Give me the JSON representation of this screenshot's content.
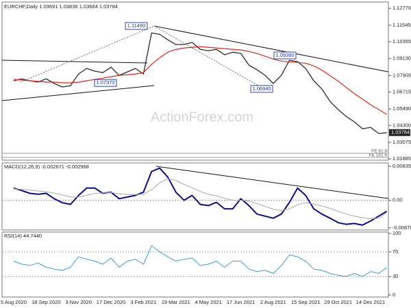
{
  "chart_data": [
    {
      "type": "line",
      "title": "EURCHF,Daily  1.03691 1.03836 1.03664 1.03784",
      "watermark": "ActionForex.com",
      "ylim": [
        1.0179,
        1.1322
      ],
      "yticks": [
        {
          "value": 1.1277,
          "label": "1.12770"
        },
        {
          "value": 1.11545,
          "label": "1.11545"
        },
        {
          "value": 1.10355,
          "label": "1.10355"
        },
        {
          "value": 1.0913,
          "label": "1.09130"
        },
        {
          "value": 1.07905,
          "label": "1.07905"
        },
        {
          "value": 1.06715,
          "label": "1.06715"
        },
        {
          "value": 1.0549,
          "label": "1.05490"
        },
        {
          "value": 1.043,
          "label": "1.04300"
        },
        {
          "value": 1.03075,
          "label": "1.03075"
        },
        {
          "value": 1.01885,
          "label": "1.01885"
        }
      ],
      "grid": false,
      "last_price": {
        "value": 1.03784,
        "label": "1.03784"
      },
      "annotations": [
        {
          "value": 1.1149,
          "label": "1.11490"
        },
        {
          "value": 1.0737,
          "label": "1.07370"
        },
        {
          "value": 1.0936,
          "label": "1.09360"
        },
        {
          "value": 1.0694,
          "label": "1.06940"
        }
      ],
      "fe_labels": [
        "FE 61.8",
        "FE 161.8"
      ],
      "series": [
        {
          "color": "#2b2b2b",
          "width": 1.3,
          "values": [
            1.0753,
            1.0767,
            1.0753,
            1.0743,
            1.0767,
            1.0733,
            1.0708,
            1.0718,
            1.0802,
            1.0842,
            1.0822,
            1.0812,
            1.0851,
            1.0792,
            1.0817,
            1.0842,
            1.0802,
            1.1099,
            1.1089,
            1.1049,
            1.1015,
            1.1015,
            1.103,
            1.098,
            1.097,
            1.098,
            1.0941,
            1.096,
            1.0951,
            1.0866,
            1.0832,
            1.0792,
            1.0733,
            1.0792,
            1.0901,
            1.0891,
            1.0842,
            1.0753,
            1.0693,
            1.0604,
            1.0545,
            1.0495,
            1.0456,
            1.0406,
            1.0416,
            1.0372,
            1.0378
          ]
        },
        {
          "color": "#e0251b",
          "width": 1.2,
          "values": [
            1.0763,
            1.0758,
            1.0753,
            1.0748,
            1.0743,
            1.0743,
            1.0738,
            1.0738,
            1.0743,
            1.0753,
            1.0763,
            1.0772,
            1.0782,
            1.0792,
            1.0797,
            1.0802,
            1.0812,
            1.0871,
            1.092,
            1.096,
            1.098,
            1.099,
            1.0995,
            1.1,
            1.0995,
            1.099,
            1.0985,
            1.098,
            1.0975,
            1.0965,
            1.095,
            1.093,
            1.091,
            1.0895,
            1.089,
            1.0885,
            1.088,
            1.086,
            1.083,
            1.079,
            1.075,
            1.0705,
            1.066,
            1.062,
            1.058,
            1.0545,
            1.051
          ]
        }
      ]
    },
    {
      "type": "line",
      "title": "MACD(12,26,9) -0.002671 -0.002968",
      "ylim": [
        -0.0073,
        0.0092
      ],
      "yticks": [
        0.008353,
        {
          "value": 0,
          "label": "0.00"
        },
        -0.006788
      ],
      "grid": true,
      "series": [
        {
          "color": "#0a0a8c",
          "width": 2,
          "values": [
            0.003,
            0.0024,
            0.0017,
            0.0015,
            0.0017,
            0.0004,
            -0.0006,
            -0.001,
            0.0012,
            0.003,
            0.003,
            0.0017,
            0.002,
            0.0004,
            0.0008,
            0.0012,
            0.002,
            0.0071,
            0.0079,
            0.0057,
            0.002,
            0.0,
            0.0012,
            -0.001,
            -0.0013,
            -0.0005,
            -0.0021,
            -0.0021,
            0.0004,
            -0.0013,
            -0.0034,
            -0.0039,
            -0.0044,
            -0.0034,
            -0.0005,
            0.003,
            0.0012,
            -0.0021,
            -0.0034,
            -0.0044,
            -0.0055,
            -0.0059,
            -0.0057,
            -0.0061,
            -0.0051,
            -0.0039,
            -0.0027
          ]
        },
        {
          "color": "#a8a8a8",
          "width": 1,
          "values": [
            0.0028,
            0.0027,
            0.0025,
            0.0023,
            0.0021,
            0.0018,
            0.0013,
            0.0008,
            0.0008,
            0.0012,
            0.0017,
            0.0018,
            0.0019,
            0.0016,
            0.0014,
            0.0014,
            0.0015,
            0.0026,
            0.0043,
            0.0053,
            0.0049,
            0.0039,
            0.0031,
            0.0022,
            0.0015,
            0.0011,
            0.0005,
            0.0,
            0.0,
            -0.0002,
            -0.0008,
            -0.0015,
            -0.0022,
            -0.0025,
            -0.0021,
            -0.0011,
            -0.0006,
            -0.0009,
            -0.0014,
            -0.002,
            -0.0027,
            -0.0034,
            -0.0039,
            -0.0043,
            -0.0045,
            -0.0044,
            -0.003
          ]
        }
      ]
    },
    {
      "type": "line",
      "title": "RSI(14) 44.7440",
      "ylim": [
        0,
        100
      ],
      "yticks": [
        100,
        70,
        30,
        0
      ],
      "grid": true,
      "categories": [
        "5 Aug 2020",
        null,
        null,
        null,
        "18 Sep 2020",
        null,
        null,
        null,
        "3 Nov 2020",
        null,
        null,
        null,
        "17 Dec 2020",
        null,
        null,
        null,
        "3 Feb 2021",
        null,
        null,
        null,
        "19 Mar 2021",
        null,
        null,
        null,
        "4 May 2021",
        null,
        null,
        null,
        "17 Jun 2021",
        null,
        null,
        null,
        "2 Aug 2021",
        null,
        null,
        null,
        "15 Sep 2021",
        null,
        null,
        null,
        "29 Oct 2021",
        null,
        null,
        null,
        "14 Dec 2021",
        null,
        null
      ],
      "series": [
        {
          "color": "#3a9ad9",
          "width": 1,
          "values": [
            55,
            50,
            48,
            52,
            45,
            42,
            40,
            45,
            62,
            58,
            55,
            50,
            60,
            45,
            55,
            58,
            50,
            80,
            70,
            62,
            55,
            58,
            60,
            48,
            50,
            55,
            45,
            55,
            55,
            42,
            38,
            40,
            35,
            48,
            65,
            62,
            55,
            42,
            40,
            35,
            32,
            30,
            35,
            30,
            38,
            35,
            44.7
          ]
        }
      ]
    }
  ]
}
